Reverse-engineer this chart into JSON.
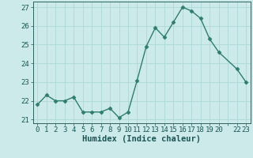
{
  "x": [
    0,
    1,
    2,
    3,
    4,
    5,
    6,
    7,
    8,
    9,
    10,
    11,
    12,
    13,
    14,
    15,
    16,
    17,
    18,
    19,
    20,
    22,
    23
  ],
  "y": [
    21.8,
    22.3,
    22.0,
    22.0,
    22.2,
    21.4,
    21.4,
    21.4,
    21.6,
    21.1,
    21.4,
    23.1,
    24.9,
    25.9,
    25.4,
    26.2,
    27.0,
    26.8,
    26.4,
    25.3,
    24.6,
    23.7,
    23.0
  ],
  "line_color": "#2e7d6e",
  "marker": "D",
  "marker_size": 2.5,
  "bg_color": "#cdeaea",
  "grid_color": "#afd8d8",
  "xlabel": "Humidex (Indice chaleur)",
  "xlim": [
    -0.5,
    23.5
  ],
  "ylim": [
    20.8,
    27.3
  ],
  "yticks": [
    21,
    22,
    23,
    24,
    25,
    26,
    27
  ],
  "xtick_positions": [
    0,
    1,
    2,
    3,
    4,
    5,
    6,
    7,
    8,
    9,
    10,
    11,
    12,
    13,
    14,
    15,
    16,
    17,
    18,
    19,
    20,
    21,
    22,
    23
  ],
  "xtick_labels": [
    "0",
    "1",
    "2",
    "3",
    "4",
    "5",
    "6",
    "7",
    "8",
    "9",
    "10",
    "11",
    "12",
    "13",
    "14",
    "15",
    "16",
    "17",
    "18",
    "19",
    "20",
    "",
    "22",
    "23"
  ],
  "tick_color": "#1a5555",
  "label_fontsize": 6.5,
  "xlabel_fontsize": 7.5,
  "axis_color": "#2e6060",
  "linewidth": 1.0
}
